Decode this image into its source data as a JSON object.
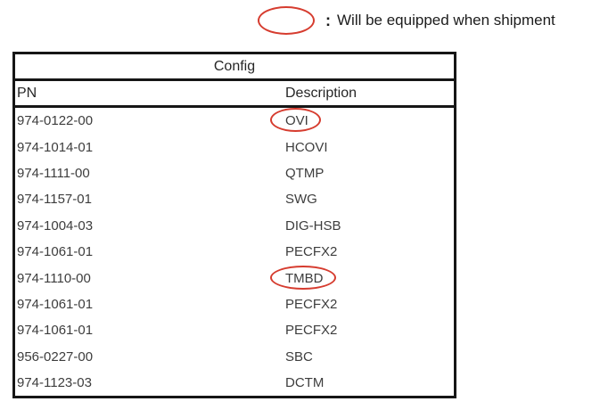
{
  "legend": {
    "symbol": "red-ellipse",
    "separator": ":",
    "text": "Will be equipped when shipment"
  },
  "table": {
    "title": "Config",
    "columns": [
      "PN",
      "Description"
    ],
    "rows": [
      {
        "pn": "974-0122-00",
        "description": "OVI",
        "circled": true
      },
      {
        "pn": "974-1014-01",
        "description": "HCOVI",
        "circled": false
      },
      {
        "pn": "974-1111-00",
        "description": "QTMP",
        "circled": false
      },
      {
        "pn": "974-1157-01",
        "description": "SWG",
        "circled": false
      },
      {
        "pn": "974-1004-03",
        "description": "DIG-HSB",
        "circled": false
      },
      {
        "pn": "974-1061-01",
        "description": "PECFX2",
        "circled": false
      },
      {
        "pn": "974-1110-00",
        "description": "TMBD",
        "circled": true
      },
      {
        "pn": "974-1061-01",
        "description": "PECFX2",
        "circled": false
      },
      {
        "pn": "974-1061-01",
        "description": "PECFX2",
        "circled": false
      },
      {
        "pn": "956-0227-00",
        "description": "SBC",
        "circled": false
      },
      {
        "pn": "974-1123-03",
        "description": "DCTM",
        "circled": false
      }
    ]
  },
  "colors": {
    "accent_red": "#d63c2f",
    "table_border": "#161616",
    "table_text": "#3d3d3d",
    "legend_text": "#1c1c1c"
  }
}
